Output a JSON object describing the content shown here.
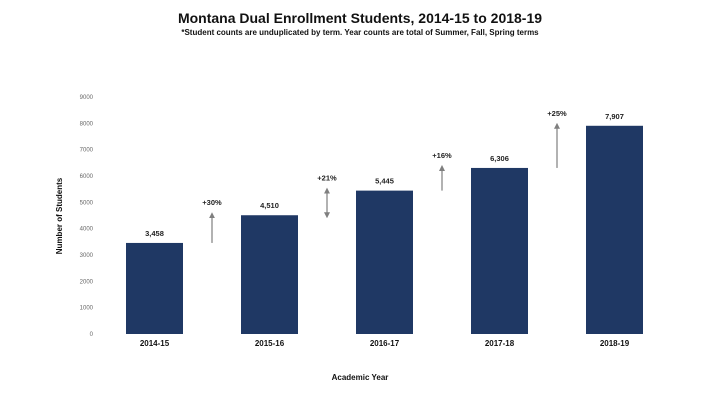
{
  "chart_data": {
    "type": "bar",
    "title": "Montana Dual Enrollment Students, 2014-15 to 2018-19",
    "subtitle": "*Student counts are unduplicated by term. Year counts are total of Summer, Fall, Spring terms",
    "xlabel": "Academic Year",
    "ylabel": "Number of Students",
    "categories": [
      "2014-15",
      "2015-16",
      "2016-17",
      "2017-18",
      "2018-19"
    ],
    "values": [
      3458,
      4510,
      5445,
      6306,
      7907
    ],
    "data_labels": [
      "3,458",
      "4,510",
      "5,445",
      "6,306",
      "7,907"
    ],
    "growth_annotations": [
      "+30%",
      "+21%",
      "+16%",
      "+25%"
    ],
    "ylim": [
      0,
      9000
    ],
    "yticks": [
      "0",
      "1000",
      "2000",
      "3000",
      "4000",
      "5000",
      "6000",
      "7000",
      "8000",
      "9000"
    ],
    "bar_color": "#1f3864",
    "arrow_color": "#7f7f7f",
    "grid": false,
    "legend": "none"
  }
}
